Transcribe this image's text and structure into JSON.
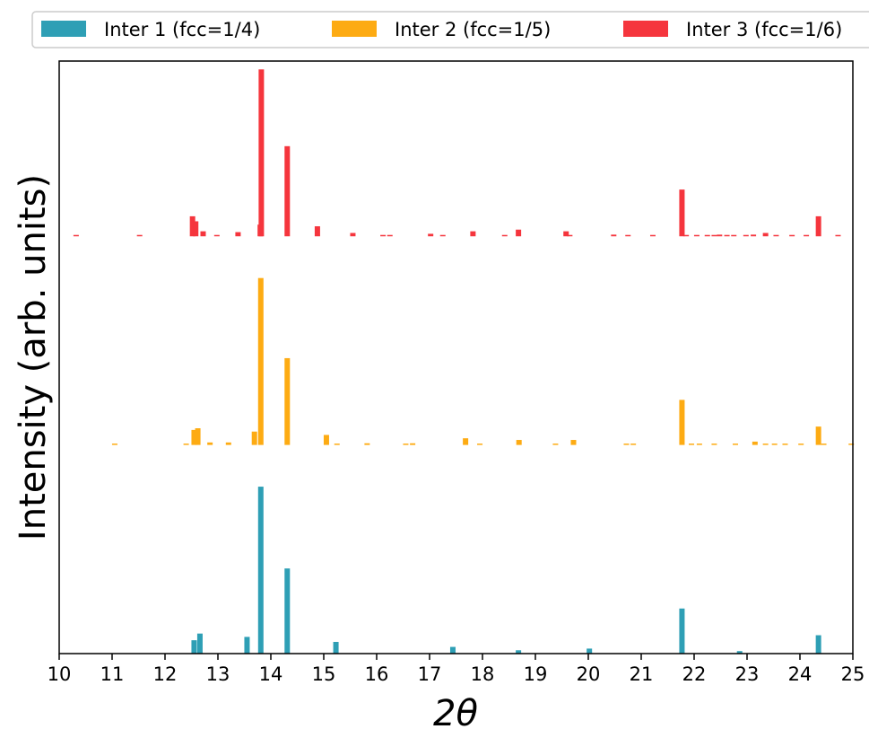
{
  "chart_data": {
    "type": "bar",
    "subtype": "stacked-offset stick spectra",
    "xlabel": "2θ",
    "ylabel": "Intensity (arb. units)",
    "xlim": [
      10,
      25
    ],
    "xticks": [
      10,
      11,
      12,
      13,
      14,
      15,
      16,
      17,
      18,
      19,
      20,
      21,
      22,
      23,
      24,
      25
    ],
    "y_ticks_shown": false,
    "grid": false,
    "legend": {
      "position": "top",
      "orientation": "horizontal"
    },
    "series": [
      {
        "name": "Inter 1 (fcc=1/4)",
        "color": "#2e9fb5",
        "offset": 0,
        "x": [
          12.55,
          12.66,
          13.55,
          13.81,
          14.31,
          15.23,
          17.44,
          18.68,
          20.02,
          21.77,
          22.86,
          24.35
        ],
        "values": [
          0.08,
          0.12,
          0.1,
          1.0,
          0.51,
          0.07,
          0.04,
          0.02,
          0.03,
          0.27,
          0.015,
          0.11
        ]
      },
      {
        "name": "Inter 2 (fcc=1/5)",
        "color": "#fdab13",
        "offset": 1.25,
        "x": [
          11.05,
          12.4,
          12.55,
          12.62,
          12.85,
          13.2,
          13.69,
          13.81,
          14.31,
          15.05,
          15.25,
          15.82,
          16.55,
          16.68,
          17.68,
          17.95,
          18.69,
          19.38,
          19.72,
          20.72,
          20.85,
          21.77,
          21.95,
          22.1,
          22.38,
          22.78,
          23.15,
          23.35,
          23.52,
          23.72,
          24.02,
          24.35,
          24.45,
          24.97
        ],
        "values": [
          0.005,
          0.005,
          0.09,
          0.1,
          0.015,
          0.015,
          0.08,
          1.0,
          0.52,
          0.06,
          0.005,
          0.01,
          0.005,
          0.01,
          0.04,
          0.005,
          0.03,
          0.005,
          0.03,
          0.005,
          0.005,
          0.27,
          0.005,
          0.005,
          0.005,
          0.005,
          0.02,
          0.005,
          0.005,
          0.005,
          0.005,
          0.11,
          0.005,
          0.005
        ]
      },
      {
        "name": "Inter 3 (fcc=1/6)",
        "color": "#f5353d",
        "offset": 2.5,
        "x": [
          10.32,
          11.52,
          12.52,
          12.58,
          12.72,
          12.98,
          13.38,
          13.8,
          13.82,
          14.31,
          14.88,
          15.55,
          16.12,
          16.25,
          17.02,
          17.25,
          17.82,
          18.42,
          18.68,
          19.58,
          19.65,
          20.48,
          20.75,
          21.22,
          21.77,
          21.85,
          22.05,
          22.25,
          22.38,
          22.48,
          22.62,
          22.75,
          22.98,
          23.12,
          23.35,
          23.55,
          23.85,
          24.12,
          24.35,
          24.72
        ],
        "values": [
          0.005,
          0.005,
          0.12,
          0.09,
          0.03,
          0.005,
          0.025,
          0.07,
          1.0,
          0.54,
          0.06,
          0.02,
          0.005,
          0.005,
          0.015,
          0.005,
          0.03,
          0.005,
          0.04,
          0.03,
          0.005,
          0.01,
          0.005,
          0.005,
          0.28,
          0.005,
          0.005,
          0.005,
          0.005,
          0.01,
          0.005,
          0.005,
          0.005,
          0.01,
          0.02,
          0.005,
          0.005,
          0.005,
          0.12,
          0.005
        ]
      }
    ]
  }
}
